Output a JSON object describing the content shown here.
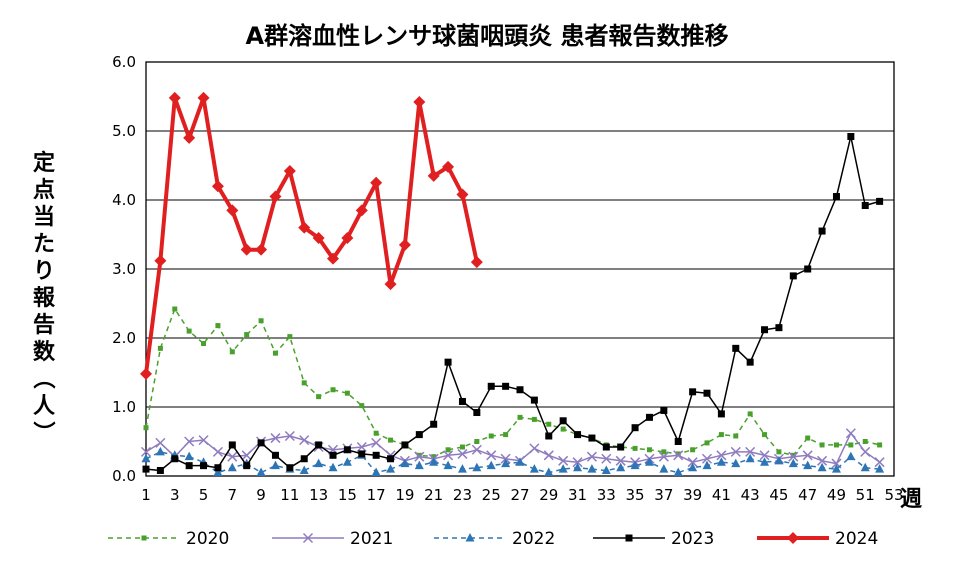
{
  "chart_data": {
    "type": "line",
    "title": "A群溶血性レンサ球菌咽頭炎 患者報告数推移",
    "ylabel": "定点当たり報告数（人）",
    "xlabel": "週",
    "ylim": [
      0,
      6
    ],
    "yticks": [
      "0.0",
      "1.0",
      "2.0",
      "3.0",
      "4.0",
      "5.0",
      "6.0"
    ],
    "xlim": [
      1,
      53
    ],
    "xticks": [
      1,
      3,
      5,
      7,
      9,
      11,
      13,
      15,
      17,
      19,
      21,
      23,
      25,
      27,
      29,
      31,
      33,
      35,
      37,
      39,
      41,
      43,
      45,
      47,
      49,
      51,
      53
    ],
    "grid": "horizontal",
    "legend_position": "bottom",
    "series": [
      {
        "name": "2020",
        "color": "#4aa02c",
        "style": "dashed",
        "marker": "small-square",
        "values": [
          0.7,
          1.85,
          2.42,
          2.1,
          1.92,
          2.18,
          1.8,
          2.05,
          2.25,
          1.78,
          2.02,
          1.35,
          1.15,
          1.25,
          1.2,
          1.02,
          0.62,
          0.52,
          0.45,
          0.3,
          0.28,
          0.38,
          0.42,
          0.5,
          0.58,
          0.6,
          0.85,
          0.82,
          0.75,
          0.68,
          0.6,
          0.55,
          0.45,
          0.42,
          0.4,
          0.38,
          0.35,
          0.32,
          0.38,
          0.48,
          0.6,
          0.58,
          0.9,
          0.6,
          0.35,
          0.3,
          0.55,
          0.45,
          0.45,
          0.45,
          0.5,
          0.45
        ]
      },
      {
        "name": "2021",
        "color": "#8f7cbf",
        "style": "solid",
        "marker": "x",
        "values": [
          0.35,
          0.48,
          0.28,
          0.5,
          0.52,
          0.35,
          0.28,
          0.3,
          0.5,
          0.55,
          0.58,
          0.52,
          0.42,
          0.38,
          0.4,
          0.42,
          0.48,
          0.3,
          0.22,
          0.28,
          0.25,
          0.3,
          0.32,
          0.38,
          0.3,
          0.25,
          0.22,
          0.4,
          0.3,
          0.22,
          0.2,
          0.28,
          0.25,
          0.22,
          0.2,
          0.25,
          0.28,
          0.3,
          0.2,
          0.25,
          0.3,
          0.35,
          0.35,
          0.3,
          0.25,
          0.28,
          0.3,
          0.22,
          0.18,
          0.62,
          0.35,
          0.2
        ]
      },
      {
        "name": "2022",
        "color": "#2e75b6",
        "style": "dashed",
        "marker": "triangle",
        "values": [
          0.25,
          0.35,
          0.3,
          0.28,
          0.2,
          0.05,
          0.12,
          0.18,
          0.05,
          0.15,
          0.1,
          0.08,
          0.18,
          0.12,
          0.2,
          0.3,
          0.05,
          0.1,
          0.18,
          0.15,
          0.2,
          0.15,
          0.1,
          0.12,
          0.15,
          0.18,
          0.2,
          0.1,
          0.05,
          0.1,
          0.12,
          0.1,
          0.08,
          0.12,
          0.15,
          0.2,
          0.1,
          0.05,
          0.12,
          0.15,
          0.2,
          0.18,
          0.25,
          0.2,
          0.22,
          0.18,
          0.15,
          0.12,
          0.1,
          0.28,
          0.12,
          0.1
        ]
      },
      {
        "name": "2023",
        "color": "#000000",
        "style": "solid",
        "marker": "square",
        "values": [
          0.1,
          0.08,
          0.25,
          0.15,
          0.15,
          0.12,
          0.45,
          0.15,
          0.48,
          0.3,
          0.12,
          0.25,
          0.45,
          0.3,
          0.38,
          0.32,
          0.3,
          0.25,
          0.45,
          0.6,
          0.75,
          1.65,
          1.08,
          0.92,
          1.3,
          1.3,
          1.25,
          1.1,
          0.58,
          0.8,
          0.6,
          0.55,
          0.42,
          0.42,
          0.7,
          0.85,
          0.95,
          0.5,
          1.22,
          1.2,
          0.9,
          1.85,
          1.65,
          2.12,
          2.15,
          2.9,
          3.0,
          3.55,
          4.05,
          4.92,
          3.92,
          3.98
        ]
      },
      {
        "name": "2024",
        "color": "#e02020",
        "style": "solid-thick",
        "marker": "diamond",
        "values": [
          1.48,
          3.12,
          5.48,
          4.9,
          5.48,
          4.2,
          3.85,
          3.28,
          3.28,
          4.05,
          4.42,
          3.6,
          3.45,
          3.15,
          3.45,
          3.85,
          4.25,
          2.78,
          3.35,
          5.42,
          4.35,
          4.48,
          4.08,
          3.1
        ]
      }
    ]
  }
}
